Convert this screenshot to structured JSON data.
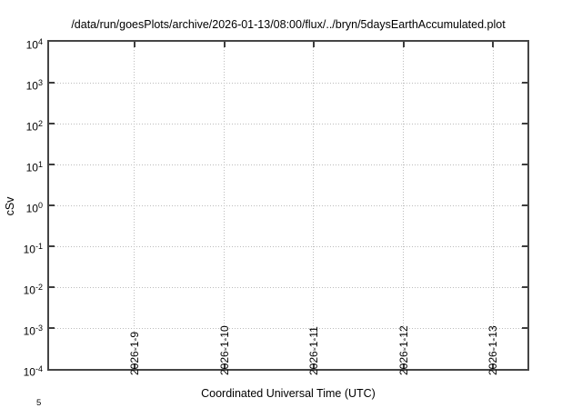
{
  "chart_data": {
    "type": "line",
    "title": "/data/run/goesPlots/archive/2026-01-13/08:00/flux/../bryn/5daysEarthAccumulated.plot",
    "xlabel": "Coordinated Universal Time (UTC)",
    "ylabel": "cSv",
    "y_scale": "log",
    "ylim": [
      0.0001,
      10000
    ],
    "y_tick_base": "10",
    "y_tick_exponents": [
      "4",
      "3",
      "2",
      "1",
      "0",
      "-1",
      "-2",
      "-3",
      "-4"
    ],
    "x_tick_labels": [
      "2026-1-9",
      "2026-1-10",
      "2026-1-11",
      "2026-1-12",
      "2026-1-13"
    ],
    "grid": "dotted",
    "legend": "none",
    "series": []
  },
  "colors": {
    "border": "#454545",
    "tick": "#3d3d3d",
    "grid_dots": "#bcbcbc",
    "text": "#000000"
  },
  "clipped_fragment": "5"
}
